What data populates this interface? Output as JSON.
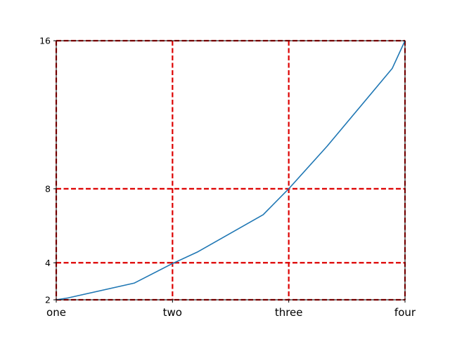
{
  "chart_data": {
    "type": "line",
    "title": "",
    "xlabel": "",
    "ylabel": "",
    "x_scale": "linear",
    "y_scale": "linear",
    "xlim": [
      1,
      4
    ],
    "ylim": [
      2,
      16
    ],
    "grid": true,
    "x_ticks": [
      {
        "value": 1,
        "label": "one"
      },
      {
        "value": 2,
        "label": "two"
      },
      {
        "value": 3,
        "label": "three"
      },
      {
        "value": 4,
        "label": "four"
      }
    ],
    "y_ticks": [
      {
        "value": 2,
        "label": "2"
      },
      {
        "value": 4,
        "label": "4"
      },
      {
        "value": 8,
        "label": "8"
      },
      {
        "value": 16,
        "label": "16"
      }
    ],
    "series": [
      {
        "color": "#1f77b4",
        "x": [
          1,
          1.1,
          1.67,
          2,
          2.22,
          2.78,
          3,
          3.33,
          3.89,
          4
        ],
        "y": [
          2,
          2.1,
          2.9,
          3.96,
          4.6,
          6.6,
          8,
          10.3,
          14.5,
          16
        ]
      }
    ],
    "colors": {
      "grid": "#dd0000",
      "line": "#1f77b4"
    }
  }
}
